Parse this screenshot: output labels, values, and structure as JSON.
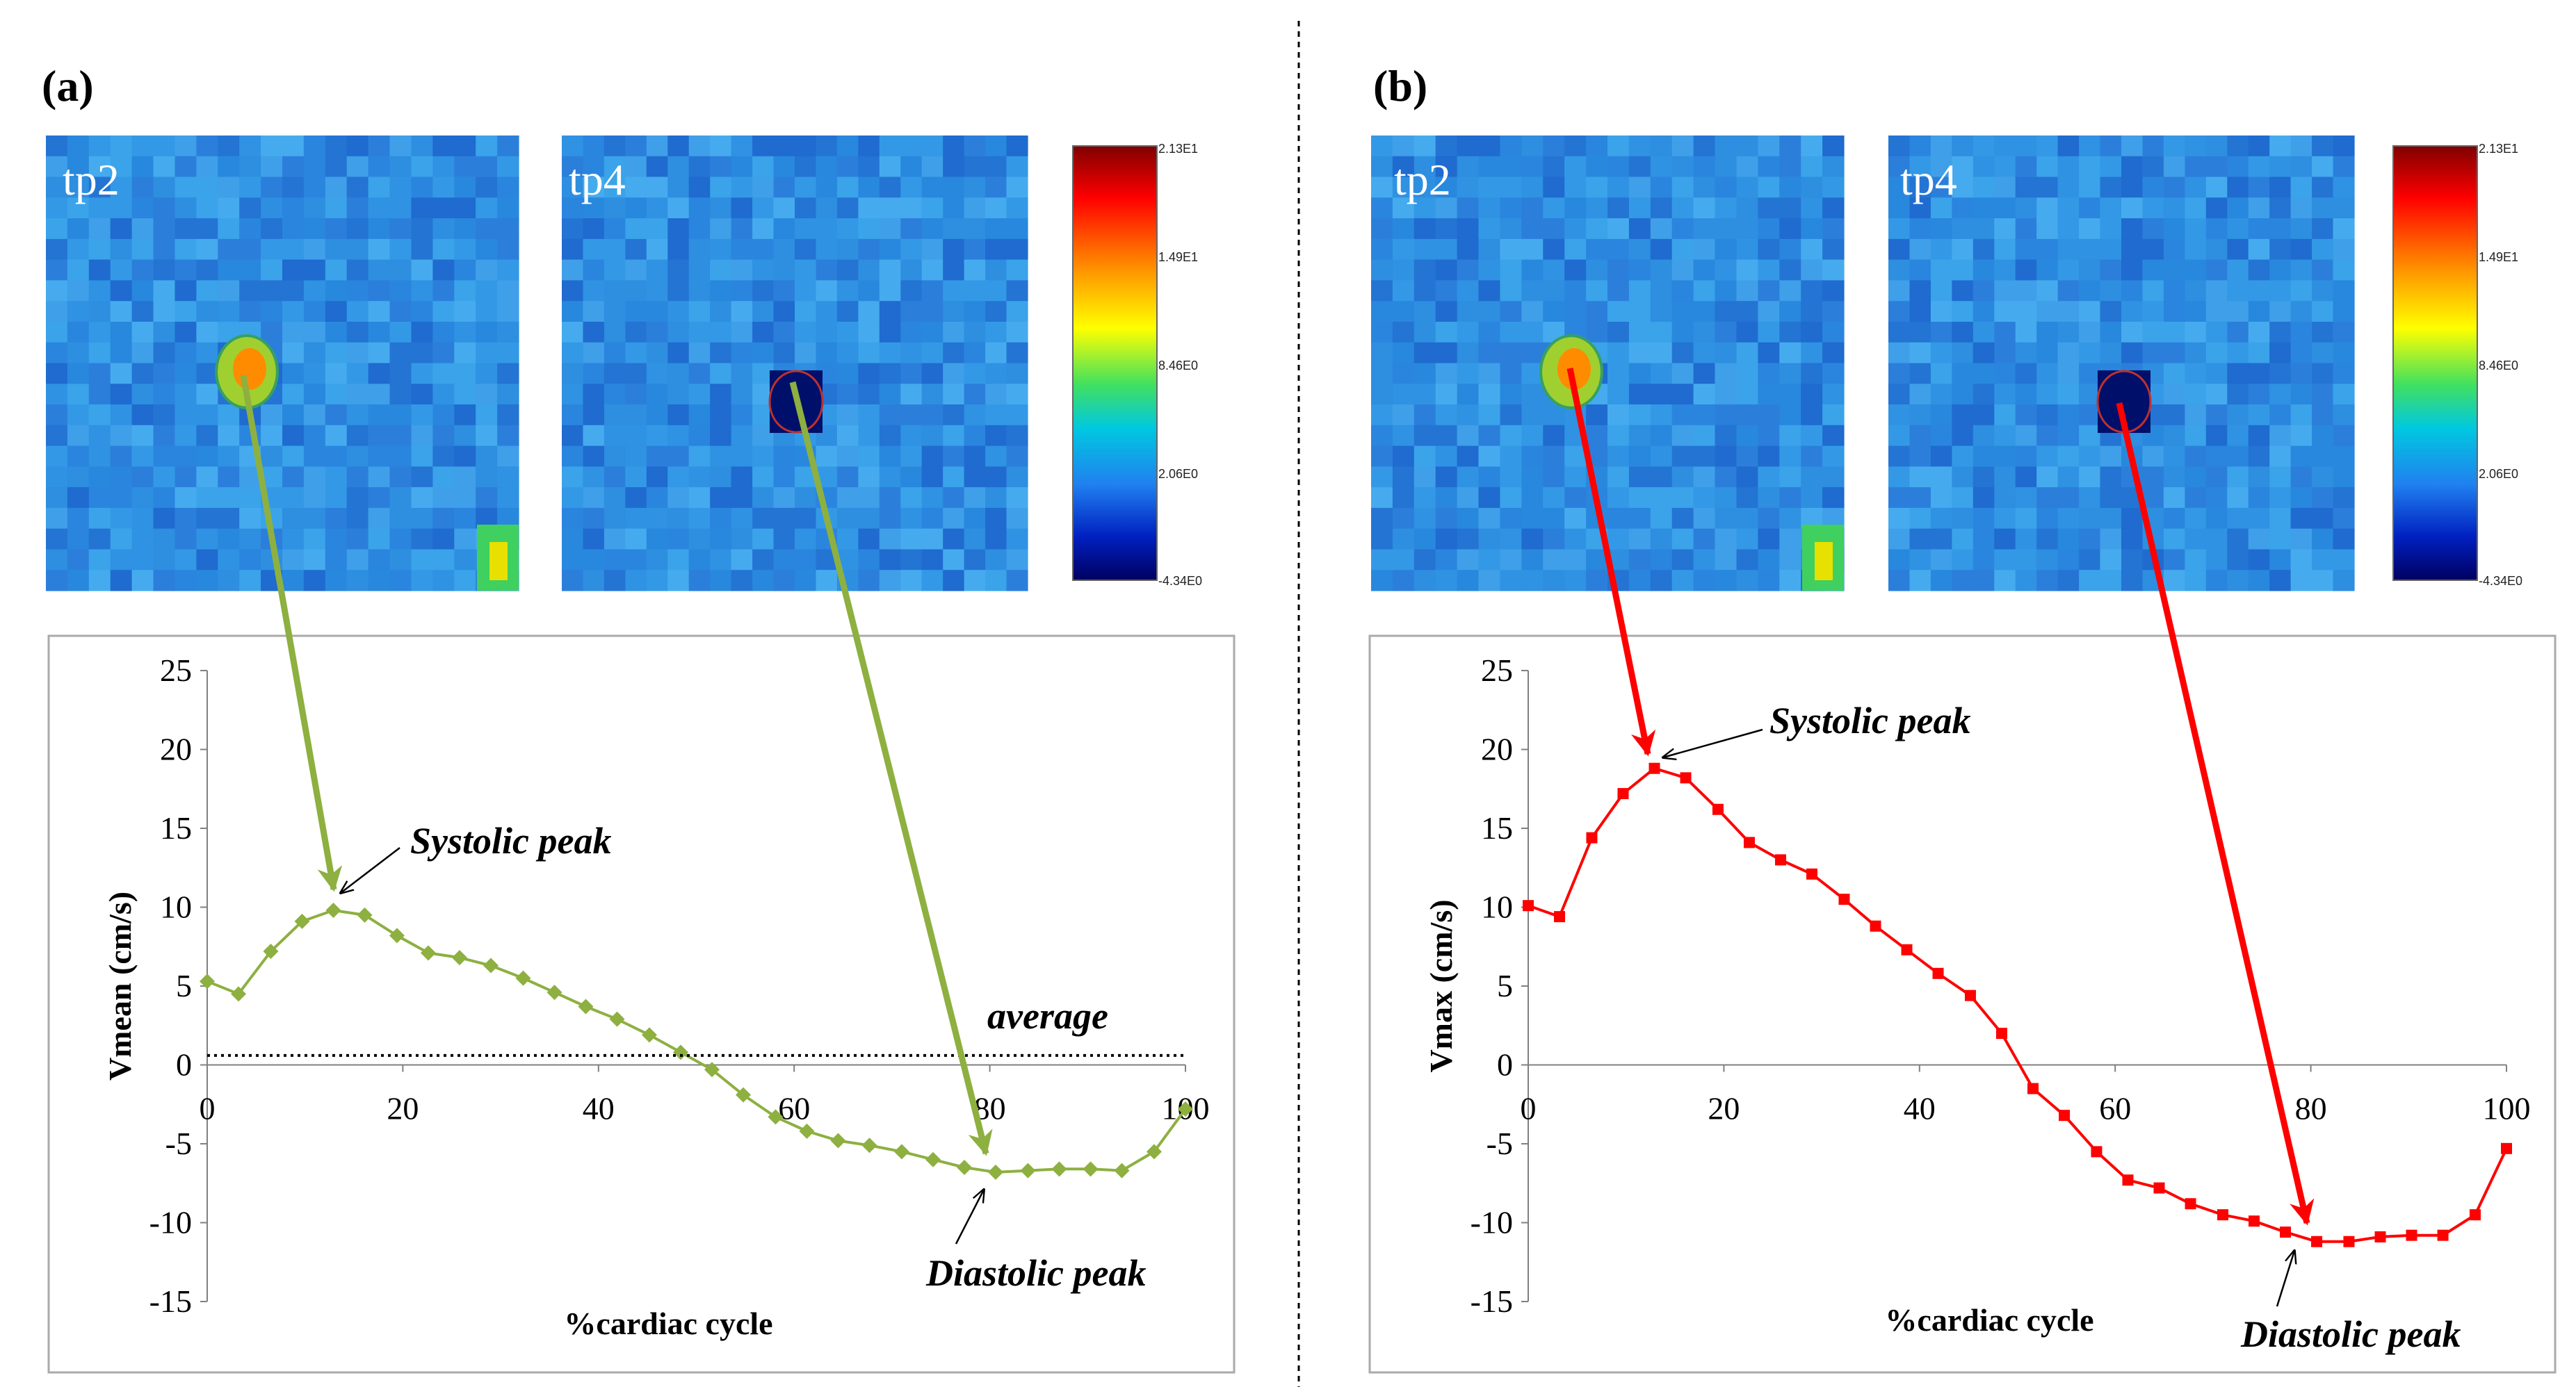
{
  "colors": {
    "green": "#8DB040",
    "red": "#FF0000",
    "map_base": "#2E8EE0",
    "plot_border": "#AAAAAA"
  },
  "panels": [
    {
      "label": "(a)",
      "map_labels": [
        "tp2",
        "tp4"
      ],
      "colorbar_labels": [
        "2.13E1",
        "1.49E1",
        "8.46E0",
        "2.06E0",
        "-4.34E0"
      ]
    },
    {
      "label": "(b)",
      "map_labels": [
        "tp2",
        "tp4"
      ],
      "colorbar_labels": [
        "2.13E1",
        "1.49E1",
        "8.46E0",
        "2.06E0",
        "-4.34E0"
      ]
    }
  ],
  "chart_data": [
    {
      "type": "line",
      "title": "",
      "xlabel": "%cardiac cycle",
      "ylabel": "Vmean (cm/s)",
      "xlim": [
        0,
        100
      ],
      "ylim": [
        -15,
        25
      ],
      "xticks": [
        0,
        20,
        40,
        60,
        80,
        100
      ],
      "yticks": [
        25,
        20,
        15,
        10,
        5,
        0,
        -5,
        -10,
        -15
      ],
      "series": [
        {
          "name": "Vmean",
          "color": "#8DB040",
          "x": [
            0,
            3.2,
            6.5,
            9.7,
            12.9,
            16.1,
            19.4,
            22.6,
            25.8,
            29.0,
            32.3,
            35.5,
            38.7,
            41.9,
            45.2,
            48.4,
            51.6,
            54.8,
            58.1,
            61.3,
            64.5,
            67.7,
            71.0,
            74.2,
            77.4,
            80.6,
            83.9,
            87.1,
            90.3,
            93.5,
            96.8,
            100
          ],
          "values": [
            5.3,
            4.5,
            7.2,
            9.1,
            9.8,
            9.5,
            8.2,
            7.1,
            6.8,
            6.3,
            5.5,
            4.6,
            3.7,
            2.9,
            1.9,
            0.8,
            -0.3,
            -1.9,
            -3.3,
            -4.2,
            -4.8,
            -5.1,
            -5.5,
            -6.0,
            -6.5,
            -6.8,
            -6.7,
            -6.6,
            -6.6,
            -6.7,
            -5.5,
            -2.8
          ]
        },
        {
          "name": "average",
          "color": "#000000",
          "style": "dotted",
          "x": [
            0,
            100
          ],
          "values": [
            0.6,
            0.6
          ]
        }
      ],
      "annotations": [
        {
          "text": "Systolic peak",
          "x": 13,
          "y": 9.8
        },
        {
          "text": "Diastolic peak",
          "x": 80.5,
          "y": -6.8
        },
        {
          "text": "average"
        }
      ]
    },
    {
      "type": "line",
      "title": "",
      "xlabel": "%cardiac cycle",
      "ylabel": "Vmax (cm/s)",
      "xlim": [
        0,
        100
      ],
      "ylim": [
        -15,
        25
      ],
      "xticks": [
        0,
        20,
        40,
        60,
        80,
        100
      ],
      "yticks": [
        25,
        20,
        15,
        10,
        5,
        0,
        -5,
        -10,
        -15
      ],
      "series": [
        {
          "name": "Vmax",
          "color": "#FF0000",
          "x": [
            0,
            3.2,
            6.5,
            9.7,
            12.9,
            16.1,
            19.4,
            22.6,
            25.8,
            29.0,
            32.3,
            35.5,
            38.7,
            41.9,
            45.2,
            48.4,
            51.6,
            54.8,
            58.1,
            61.3,
            64.5,
            67.7,
            71.0,
            74.2,
            77.4,
            80.6,
            83.9,
            87.1,
            90.3,
            93.5,
            96.8,
            100
          ],
          "values": [
            10.1,
            9.4,
            14.4,
            17.2,
            18.8,
            18.2,
            16.2,
            14.1,
            13.0,
            12.1,
            10.5,
            8.8,
            7.3,
            5.8,
            4.4,
            2.0,
            -1.5,
            -3.2,
            -5.5,
            -7.3,
            -7.8,
            -8.8,
            -9.5,
            -9.9,
            -10.6,
            -11.2,
            -11.2,
            -10.9,
            -10.8,
            -10.8,
            -9.5,
            -5.3
          ]
        }
      ],
      "annotations": [
        {
          "text": "Systolic peak",
          "x": 12.9,
          "y": 18.8
        },
        {
          "text": "Diastolic peak",
          "x": 80.6,
          "y": -11.2
        }
      ]
    }
  ]
}
